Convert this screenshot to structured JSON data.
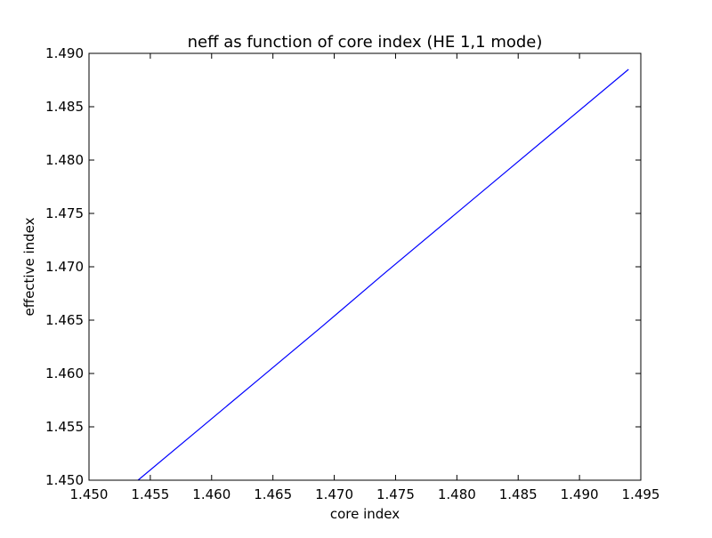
{
  "chart_data": {
    "type": "line",
    "title": "neff as function of core index (HE 1,1 mode)",
    "xlabel": "core index",
    "ylabel": "effective index",
    "xlim": [
      1.45,
      1.495
    ],
    "ylim": [
      1.45,
      1.49
    ],
    "xticks": [
      "1.450",
      "1.455",
      "1.460",
      "1.465",
      "1.470",
      "1.475",
      "1.480",
      "1.485",
      "1.490",
      "1.495"
    ],
    "yticks": [
      "1.450",
      "1.455",
      "1.460",
      "1.465",
      "1.470",
      "1.475",
      "1.480",
      "1.485",
      "1.490"
    ],
    "grid": false,
    "legend": "none",
    "series": [
      {
        "color": "#0000ff",
        "x": [
          1.454,
          1.459,
          1.464,
          1.469,
          1.474,
          1.479,
          1.484,
          1.489,
          1.494
        ],
        "y": [
          1.45,
          1.4548,
          1.4596,
          1.4644,
          1.4693,
          1.4741,
          1.4789,
          1.4837,
          1.4885
        ]
      }
    ]
  }
}
